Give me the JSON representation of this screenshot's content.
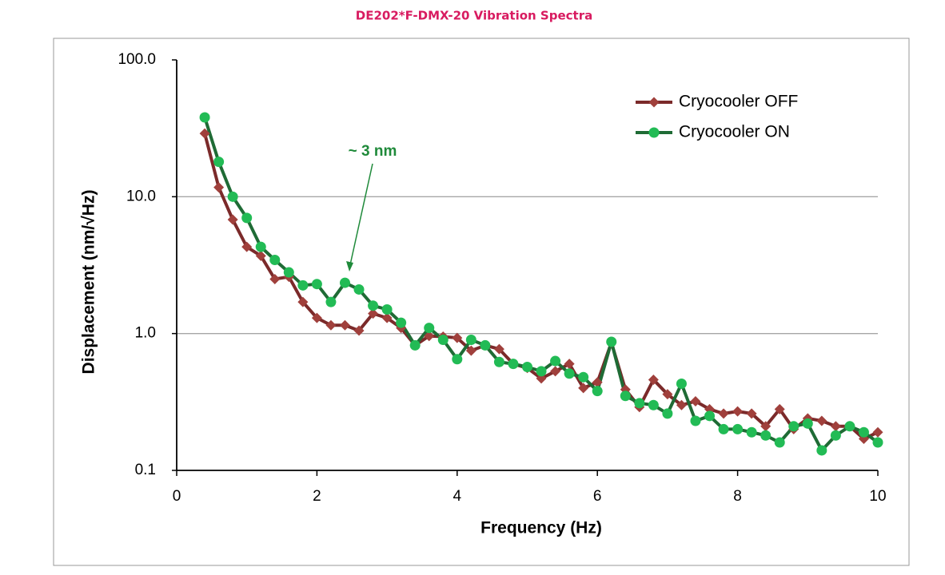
{
  "chart_data": {
    "type": "line",
    "title": "DE202*F-DMX-20 Vibration Spectra",
    "x_label": "Frequency (Hz)",
    "y_label": "Displacement (nm/√Hz)",
    "annotation": "~ 3 nm",
    "x": [
      0.4,
      0.6,
      0.8,
      1.0,
      1.2,
      1.4,
      1.6,
      1.8,
      2.0,
      2.2,
      2.4,
      2.6,
      2.8,
      3.0,
      3.2,
      3.4,
      3.6,
      3.8,
      4.0,
      4.2,
      4.4,
      4.6,
      4.8,
      5.0,
      5.2,
      5.4,
      5.6,
      5.8,
      6.0,
      6.2,
      6.4,
      6.6,
      6.8,
      7.0,
      7.2,
      7.4,
      7.6,
      7.8,
      8.0,
      8.2,
      8.4,
      8.6,
      8.8,
      9.0,
      9.2,
      9.4,
      9.6,
      9.8,
      10.0
    ],
    "series": [
      {
        "name": "Cryocooler OFF",
        "color": "#7b2a2a",
        "marker_color": "#a0403c",
        "marker": "diamond",
        "values": [
          29,
          11.7,
          6.8,
          4.3,
          3.7,
          2.5,
          2.6,
          1.7,
          1.3,
          1.15,
          1.15,
          1.05,
          1.4,
          1.3,
          1.1,
          0.82,
          0.96,
          0.95,
          0.93,
          0.75,
          0.82,
          0.77,
          0.6,
          0.56,
          0.47,
          0.53,
          0.6,
          0.4,
          0.44,
          0.86,
          0.39,
          0.29,
          0.46,
          0.36,
          0.3,
          0.32,
          0.28,
          0.26,
          0.27,
          0.26,
          0.21,
          0.28,
          0.2,
          0.24,
          0.23,
          0.21,
          0.21,
          0.17,
          0.19
        ]
      },
      {
        "name": "Cryocooler ON",
        "color": "#1f6b35",
        "marker_color": "#22bb55",
        "marker": "circle",
        "values": [
          38,
          18,
          10,
          7.0,
          4.3,
          3.45,
          2.8,
          2.25,
          2.3,
          1.7,
          2.35,
          2.1,
          1.6,
          1.5,
          1.2,
          0.82,
          1.1,
          0.9,
          0.65,
          0.9,
          0.82,
          0.62,
          0.6,
          0.57,
          0.53,
          0.63,
          0.51,
          0.48,
          0.38,
          0.87,
          0.35,
          0.31,
          0.3,
          0.26,
          0.43,
          0.23,
          0.25,
          0.2,
          0.2,
          0.19,
          0.18,
          0.16,
          0.21,
          0.22,
          0.14,
          0.18,
          0.21,
          0.19,
          0.16
        ]
      }
    ],
    "xlim": [
      0,
      10
    ],
    "xticks": [
      0,
      2,
      4,
      6,
      8,
      10
    ],
    "ylim": [
      0.1,
      100
    ],
    "yticks": [
      0.1,
      {
        "value": 1,
        "label": "1.0"
      },
      {
        "value": 10,
        "label": "10.0"
      },
      {
        "value": 100,
        "label": "100.0"
      }
    ],
    "y_scale": "log",
    "grid": true,
    "legend_position": "upper right"
  }
}
